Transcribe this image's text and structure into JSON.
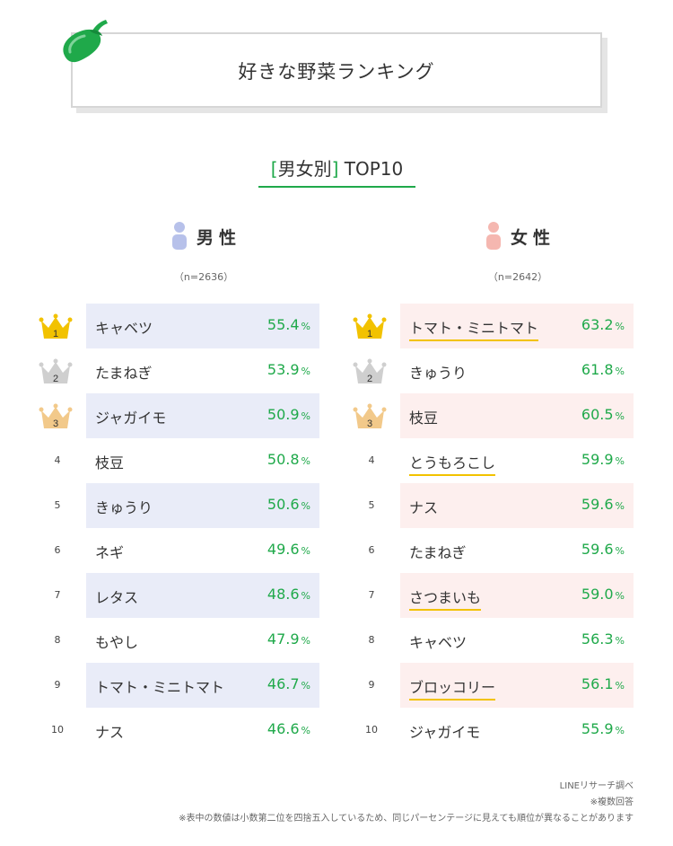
{
  "header": {
    "title": "好きな野菜ランキング",
    "icon": "eggplant-icon"
  },
  "section": {
    "bracket_open": "[",
    "label": "男女別",
    "bracket_close": "]",
    "suffix": "TOP10"
  },
  "colors": {
    "accent": "#1fa94a",
    "male_band": "#e9ecf8",
    "female_band": "#fdefee",
    "gold": "#f2c200",
    "silver": "#cfcfcf",
    "bronze": "#f2c98a",
    "male_icon": "#b7c1ea",
    "female_icon": "#f5b7b0"
  },
  "chart_data": [
    {
      "type": "table",
      "group": "男性",
      "label_char1": "男",
      "label_char2": "性",
      "n": "（n=2636）",
      "unit": "%",
      "ranks": [
        1,
        2,
        3,
        4,
        5,
        6,
        7,
        8,
        9,
        10
      ],
      "items": [
        "キャベツ",
        "たまねぎ",
        "ジャガイモ",
        "枝豆",
        "きゅうり",
        "ネギ",
        "レタス",
        "もやし",
        "トマト・ミニトマト",
        "ナス"
      ],
      "values": [
        55.4,
        53.9,
        50.9,
        50.8,
        50.6,
        49.6,
        48.6,
        47.9,
        46.7,
        46.6
      ]
    },
    {
      "type": "table",
      "group": "女性",
      "label_char1": "女",
      "label_char2": "性",
      "n": "（n=2642）",
      "unit": "%",
      "ranks": [
        1,
        2,
        3,
        4,
        5,
        6,
        7,
        8,
        9,
        10
      ],
      "items": [
        "トマト・ミニトマト",
        "きゅうり",
        "枝豆",
        "とうもろこし",
        "ナス",
        "たまねぎ",
        "さつまいも",
        "キャベツ",
        "ブロッコリー",
        "ジャガイモ"
      ],
      "values": [
        63.2,
        61.8,
        60.5,
        59.9,
        59.6,
        59.6,
        59.0,
        56.3,
        56.1,
        55.9
      ],
      "underlined": [
        true,
        false,
        false,
        true,
        false,
        false,
        true,
        false,
        true,
        false
      ]
    }
  ],
  "footnotes": [
    "LINEリサーチ調べ",
    "※複数回答",
    "※表中の数値は小数第二位を四捨五入しているため、同じパーセンテージに見えても順位が異なることがあります"
  ]
}
